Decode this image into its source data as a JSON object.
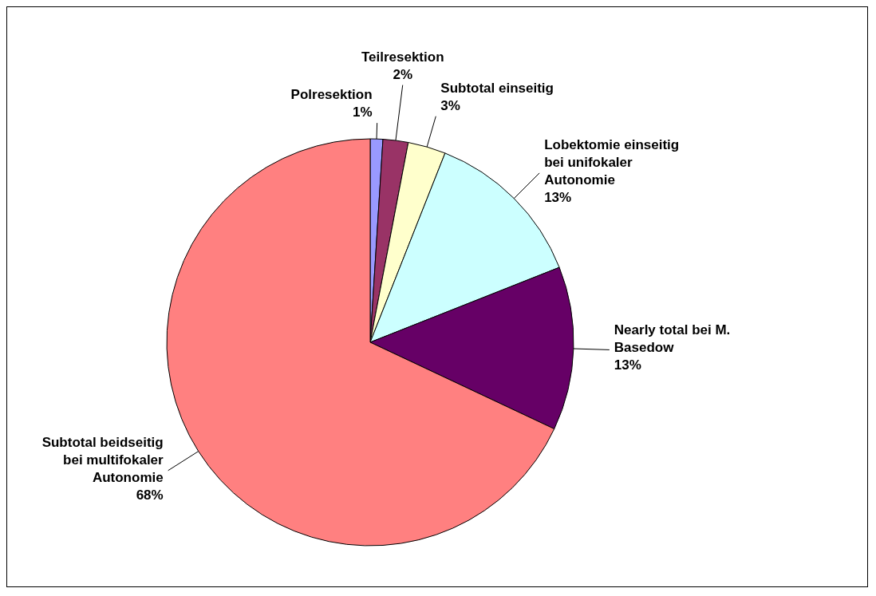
{
  "chart_data": {
    "type": "pie",
    "categories": [
      "Polresektion",
      "Teilresektion",
      "Subtotal einseitig",
      "Lobektomie einseitig bei unifokaler Autonomie",
      "Nearly total bei M. Basedow",
      "Subtotal beidseitig bei multifokaler Autonomie"
    ],
    "values": [
      1,
      2,
      3,
      13,
      13,
      68
    ],
    "value_labels": [
      "1%",
      "2%",
      "3%",
      "13%",
      "13%",
      "68%"
    ],
    "colors": [
      "#9999ff",
      "#993366",
      "#ffffcc",
      "#ccffff",
      "#660066",
      "#ff8080"
    ]
  }
}
